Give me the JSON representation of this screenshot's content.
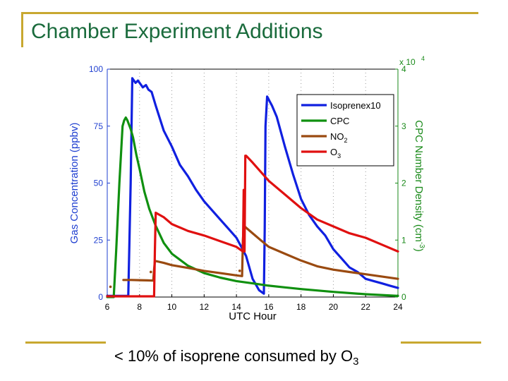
{
  "slide": {
    "title": "Chamber Experiment Additions",
    "caption_main": "< 10% of isoprene consumed by O",
    "caption_sub": "3",
    "accent_color": "#c8a830",
    "title_color": "#1a6b3c"
  },
  "chart_data": {
    "type": "line",
    "title": "",
    "xlabel": "UTC Hour",
    "ylabel_left": "Gas Concentration (ppbv)",
    "ylabel_right": "CPC Number Density (cm",
    "ylabel_right_sup": "-3",
    "ylabel_right_close": ")",
    "right_axis_multiplier": "x 10",
    "right_axis_multiplier_exp": "4",
    "xlim": [
      6,
      24
    ],
    "ylim_left": [
      0,
      100
    ],
    "ylim_right": [
      0,
      4
    ],
    "xticks": [
      6,
      8,
      10,
      12,
      14,
      16,
      18,
      20,
      22,
      24
    ],
    "yticks_left": [
      0,
      25,
      50,
      75,
      100
    ],
    "yticks_right": [
      0,
      1,
      2,
      3,
      4
    ],
    "grid": "vertical dotted lines at x ticks",
    "legend_position": "top-right",
    "left_axis_color": "#1f3fd0",
    "right_axis_color": "#1a8a1a",
    "series": [
      {
        "name": "Isoprene x 10",
        "legend_label": "Isoprenex10",
        "color": "#1020e0",
        "axis": "left",
        "x": [
          6.0,
          7.3,
          7.45,
          7.55,
          7.75,
          7.9,
          8.1,
          8.2,
          8.4,
          8.55,
          8.75,
          9.0,
          9.5,
          10.0,
          10.5,
          11.0,
          11.5,
          12.0,
          12.5,
          13.0,
          13.5,
          14.0,
          14.3,
          14.6,
          15.0,
          15.4,
          15.7,
          15.75,
          15.8,
          15.9,
          16.05,
          16.2,
          16.5,
          17.0,
          17.5,
          18.0,
          18.5,
          19.0,
          19.5,
          20.0,
          20.5,
          21.0,
          21.5,
          22.0,
          22.5,
          23.0,
          23.5,
          24.0
        ],
        "values": [
          0.5,
          0.5,
          50,
          96,
          94,
          95,
          93,
          92,
          93,
          91,
          90,
          84,
          73,
          66,
          58,
          53,
          47,
          42,
          38,
          34,
          30,
          26,
          22,
          18,
          8,
          3,
          1.5,
          30,
          75,
          88,
          86,
          84,
          79,
          66,
          54,
          43,
          36,
          31,
          27,
          21,
          17,
          13,
          11,
          8,
          7,
          6,
          5,
          4
        ]
      },
      {
        "name": "CPC",
        "legend_label": "CPC",
        "color": "#109010",
        "axis": "right",
        "x": [
          6.0,
          6.4,
          6.55,
          6.75,
          6.95,
          7.05,
          7.15,
          7.25,
          7.45,
          7.6,
          7.8,
          8.0,
          8.3,
          8.6,
          9.0,
          9.5,
          10.0,
          11.0,
          12.0,
          13.0,
          14.0,
          15.0,
          16.0,
          17.0,
          18.0,
          20.0,
          22.0,
          24.0
        ],
        "values": [
          0.0,
          0.0,
          0.8,
          2.0,
          3.0,
          3.1,
          3.15,
          3.1,
          2.95,
          2.8,
          2.5,
          2.25,
          1.85,
          1.55,
          1.25,
          0.95,
          0.76,
          0.55,
          0.42,
          0.34,
          0.28,
          0.24,
          0.2,
          0.17,
          0.14,
          0.09,
          0.05,
          0.02
        ]
      },
      {
        "name": "NO2",
        "legend_label": "NO",
        "legend_sub": "2",
        "color": "#9a4a10",
        "axis": "left",
        "x": [
          7.0,
          7.5,
          8.0,
          8.5,
          8.85,
          8.9,
          8.95,
          9.0,
          9.5,
          10.0,
          11.0,
          12.0,
          13.0,
          14.0,
          14.35,
          14.4,
          14.45,
          14.5,
          15.0,
          15.5,
          16.0,
          17.0,
          18.0,
          19.0,
          20.0,
          21.0,
          22.0,
          23.0,
          24.0
        ],
        "values": [
          7.5,
          7.5,
          7.4,
          7.3,
          7.2,
          12,
          15.8,
          15.8,
          15,
          14,
          12.8,
          11.5,
          10.5,
          9.5,
          9.2,
          25,
          31,
          31,
          28,
          25,
          22,
          19,
          16,
          13.5,
          12,
          11,
          10,
          9,
          8
        ]
      },
      {
        "name": "O3",
        "legend_label": "O",
        "legend_sub": "3",
        "color": "#e01010",
        "axis": "left",
        "x": [
          6.0,
          8.0,
          8.9,
          8.95,
          9.0,
          9.5,
          10.0,
          11.0,
          12.0,
          13.0,
          14.0,
          14.4,
          14.45,
          14.5,
          14.55,
          14.6,
          15.0,
          15.5,
          16.0,
          17.0,
          18.0,
          19.0,
          20.0,
          21.0,
          22.0,
          23.0,
          24.0
        ],
        "values": [
          0.3,
          0.3,
          0.3,
          20,
          37,
          35,
          32,
          29,
          27,
          24.5,
          22,
          20,
          47,
          20,
          62,
          62,
          59,
          55,
          51,
          45,
          39,
          34,
          31,
          28,
          26,
          23,
          20
        ]
      }
    ]
  }
}
